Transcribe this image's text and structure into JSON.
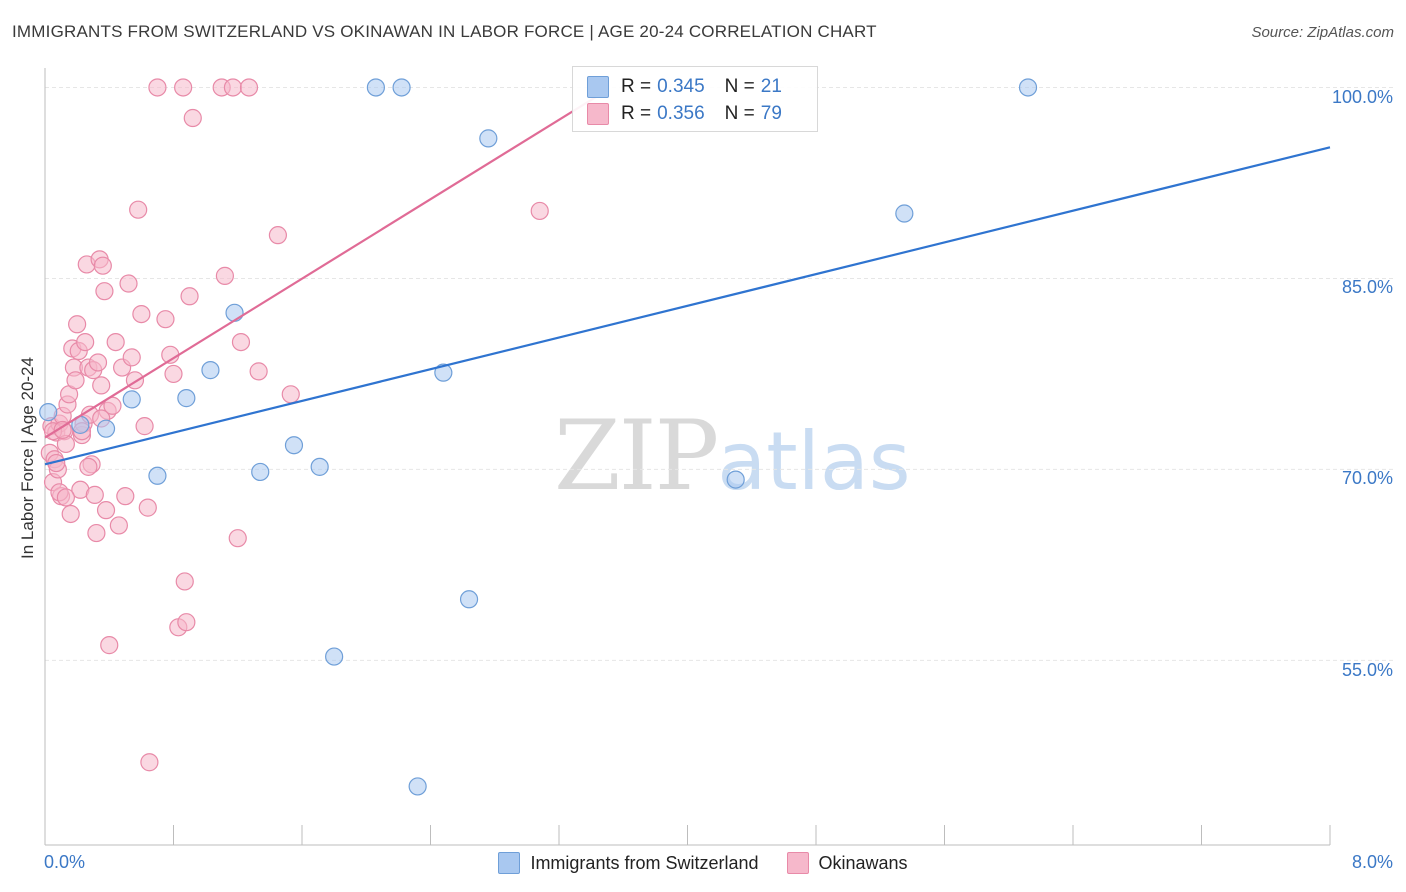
{
  "header": {
    "title": "IMMIGRANTS FROM SWITZERLAND VS OKINAWAN IN LABOR FORCE | AGE 20-24 CORRELATION CHART",
    "source": "Source: ZipAtlas.com"
  },
  "watermark": {
    "zip": "ZIP",
    "atlas": "atlas"
  },
  "legend_top": {
    "rows": [
      {
        "r_label": "R =",
        "r_value": "0.345",
        "n_label": "N =",
        "n_value": "21"
      },
      {
        "r_label": "R =",
        "r_value": "0.356",
        "n_label": "N =",
        "n_value": "79"
      }
    ]
  },
  "legend_bottom": {
    "items": [
      {
        "label": "Immigrants from Switzerland"
      },
      {
        "label": "Okinawans"
      }
    ]
  },
  "colors": {
    "blue_fill": "#a9c8f0",
    "blue_stroke": "#6f9fd8",
    "blue_line": "#2f74d0",
    "pink_fill": "#f6b8cb",
    "pink_stroke": "#e88aa8",
    "pink_line": "#e06b96",
    "tick_text": "#3b78c6",
    "grid": "#e6e6e6"
  },
  "chart_data": {
    "type": "scatter",
    "title": "IMMIGRANTS FROM SWITZERLAND VS OKINAWAN IN LABOR FORCE | AGE 20-24 CORRELATION CHART",
    "xlabel": "",
    "ylabel": "In Labor Force | Age 20-24",
    "xlim": [
      0,
      8
    ],
    "ylim": [
      40.5,
      102
    ],
    "x_tick_labels": [
      "0.0%",
      "8.0%"
    ],
    "y_ticks": [
      55,
      70,
      85,
      100
    ],
    "y_tick_labels": [
      "55.0%",
      "70.0%",
      "85.0%",
      "100.0%"
    ],
    "grid": true,
    "legend_position": "top-center",
    "series": [
      {
        "name": "Immigrants from Switzerland",
        "color": "#a9c8f0",
        "points": [
          {
            "x": 0.02,
            "y": 74.5
          },
          {
            "x": 0.22,
            "y": 73.5
          },
          {
            "x": 0.38,
            "y": 73.2
          },
          {
            "x": 0.54,
            "y": 75.5
          },
          {
            "x": 0.7,
            "y": 69.5
          },
          {
            "x": 0.88,
            "y": 75.6
          },
          {
            "x": 1.03,
            "y": 77.8
          },
          {
            "x": 1.18,
            "y": 82.3
          },
          {
            "x": 1.34,
            "y": 69.8
          },
          {
            "x": 1.55,
            "y": 71.9
          },
          {
            "x": 1.71,
            "y": 70.2
          },
          {
            "x": 1.8,
            "y": 55.3
          },
          {
            "x": 2.06,
            "y": 100.0
          },
          {
            "x": 2.22,
            "y": 100.0
          },
          {
            "x": 2.32,
            "y": 45.1
          },
          {
            "x": 2.48,
            "y": 77.6
          },
          {
            "x": 2.64,
            "y": 59.8
          },
          {
            "x": 2.76,
            "y": 96.0
          },
          {
            "x": 4.3,
            "y": 69.2
          },
          {
            "x": 5.35,
            "y": 90.1
          },
          {
            "x": 6.12,
            "y": 100.0
          }
        ]
      },
      {
        "name": "Okinawans",
        "color": "#f6b8cb",
        "points": [
          {
            "x": 0.03,
            "y": 71.3
          },
          {
            "x": 0.04,
            "y": 73.4
          },
          {
            "x": 0.05,
            "y": 69.0
          },
          {
            "x": 0.06,
            "y": 70.8
          },
          {
            "x": 0.07,
            "y": 72.9
          },
          {
            "x": 0.08,
            "y": 70.0
          },
          {
            "x": 0.09,
            "y": 73.6
          },
          {
            "x": 0.1,
            "y": 67.9
          },
          {
            "x": 0.11,
            "y": 74.2
          },
          {
            "x": 0.12,
            "y": 73.0
          },
          {
            "x": 0.13,
            "y": 72.0
          },
          {
            "x": 0.14,
            "y": 75.1
          },
          {
            "x": 0.15,
            "y": 75.9
          },
          {
            "x": 0.16,
            "y": 66.5
          },
          {
            "x": 0.17,
            "y": 79.5
          },
          {
            "x": 0.18,
            "y": 78.0
          },
          {
            "x": 0.19,
            "y": 77.0
          },
          {
            "x": 0.2,
            "y": 81.4
          },
          {
            "x": 0.21,
            "y": 79.3
          },
          {
            "x": 0.22,
            "y": 68.4
          },
          {
            "x": 0.23,
            "y": 72.7
          },
          {
            "x": 0.24,
            "y": 73.6
          },
          {
            "x": 0.25,
            "y": 80.0
          },
          {
            "x": 0.26,
            "y": 86.1
          },
          {
            "x": 0.27,
            "y": 78.0
          },
          {
            "x": 0.28,
            "y": 74.3
          },
          {
            "x": 0.29,
            "y": 70.4
          },
          {
            "x": 0.3,
            "y": 77.8
          },
          {
            "x": 0.31,
            "y": 68.0
          },
          {
            "x": 0.32,
            "y": 65.0
          },
          {
            "x": 0.33,
            "y": 78.4
          },
          {
            "x": 0.34,
            "y": 86.5
          },
          {
            "x": 0.35,
            "y": 76.6
          },
          {
            "x": 0.36,
            "y": 86.0
          },
          {
            "x": 0.37,
            "y": 84.0
          },
          {
            "x": 0.38,
            "y": 66.8
          },
          {
            "x": 0.39,
            "y": 74.6
          },
          {
            "x": 0.4,
            "y": 56.2
          },
          {
            "x": 0.42,
            "y": 75.0
          },
          {
            "x": 0.44,
            "y": 80.0
          },
          {
            "x": 0.46,
            "y": 65.6
          },
          {
            "x": 0.48,
            "y": 78.0
          },
          {
            "x": 0.5,
            "y": 67.9
          },
          {
            "x": 0.52,
            "y": 84.6
          },
          {
            "x": 0.54,
            "y": 78.8
          },
          {
            "x": 0.56,
            "y": 77.0
          },
          {
            "x": 0.58,
            "y": 90.4
          },
          {
            "x": 0.6,
            "y": 82.2
          },
          {
            "x": 0.62,
            "y": 73.4
          },
          {
            "x": 0.64,
            "y": 67.0
          },
          {
            "x": 0.65,
            "y": 47.0
          },
          {
            "x": 0.7,
            "y": 100.0
          },
          {
            "x": 0.75,
            "y": 81.8
          },
          {
            "x": 0.78,
            "y": 79.0
          },
          {
            "x": 0.8,
            "y": 77.5
          },
          {
            "x": 0.83,
            "y": 57.6
          },
          {
            "x": 0.86,
            "y": 100.0
          },
          {
            "x": 0.87,
            "y": 61.2
          },
          {
            "x": 0.88,
            "y": 58.0
          },
          {
            "x": 0.9,
            "y": 83.6
          },
          {
            "x": 0.92,
            "y": 97.6
          },
          {
            "x": 1.1,
            "y": 100.0
          },
          {
            "x": 1.12,
            "y": 85.2
          },
          {
            "x": 1.17,
            "y": 100.0
          },
          {
            "x": 1.2,
            "y": 64.6
          },
          {
            "x": 1.22,
            "y": 80.0
          },
          {
            "x": 1.27,
            "y": 100.0
          },
          {
            "x": 1.33,
            "y": 77.7
          },
          {
            "x": 1.45,
            "y": 88.4
          },
          {
            "x": 1.53,
            "y": 75.9
          },
          {
            "x": 3.08,
            "y": 90.3
          },
          {
            "x": 0.05,
            "y": 73.0
          },
          {
            "x": 0.07,
            "y": 70.5
          },
          {
            "x": 0.09,
            "y": 68.2
          },
          {
            "x": 0.11,
            "y": 73.1
          },
          {
            "x": 0.13,
            "y": 67.8
          },
          {
            "x": 0.23,
            "y": 73.0
          },
          {
            "x": 0.27,
            "y": 70.2
          },
          {
            "x": 0.35,
            "y": 74.0
          }
        ]
      }
    ],
    "trend_lines": [
      {
        "series": "Immigrants from Switzerland",
        "x": [
          0.0,
          8.0
        ],
        "y": [
          70.4,
          95.3
        ]
      },
      {
        "series": "Okinawans",
        "x": [
          0.0,
          3.5
        ],
        "y": [
          72.5,
          99.8
        ]
      }
    ]
  }
}
